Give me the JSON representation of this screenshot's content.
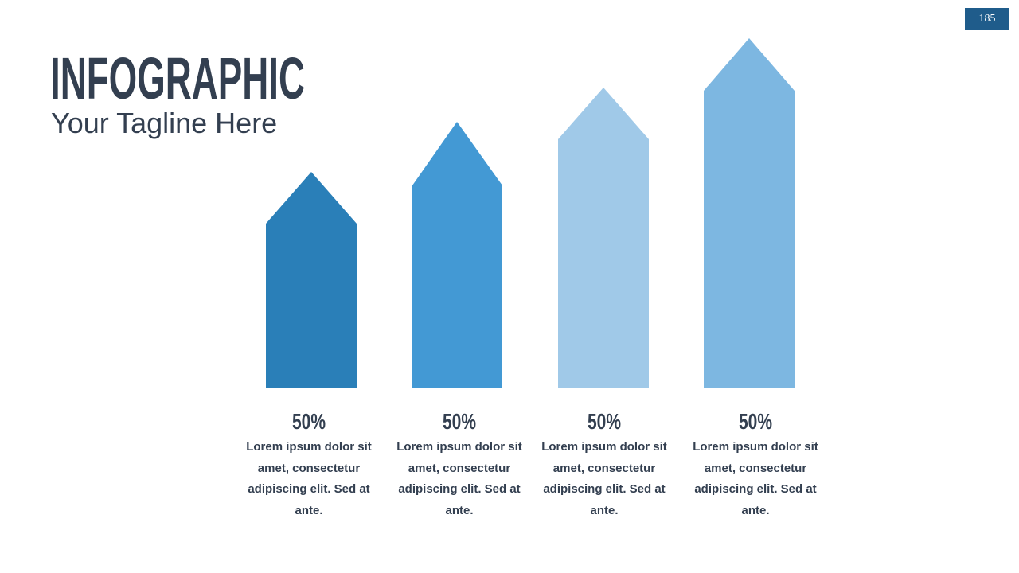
{
  "page_number": "185",
  "header": {
    "title": "INFOGRAPHIC",
    "tagline": "Your Tagline Here"
  },
  "items": [
    {
      "label": "50%",
      "text": "Lorem ipsum dolor sit amet, consectetur adipiscing elit. Sed at ante."
    },
    {
      "label": "50%",
      "text": "Lorem ipsum dolor sit amet, consectetur adipiscing elit. Sed at ante."
    },
    {
      "label": "50%",
      "text": "Lorem ipsum dolor sit amet, consectetur adipiscing elit. Sed at ante."
    },
    {
      "label": "50%",
      "text": "Lorem ipsum dolor sit amet, consectetur adipiscing elit. Sed at ante."
    }
  ]
}
